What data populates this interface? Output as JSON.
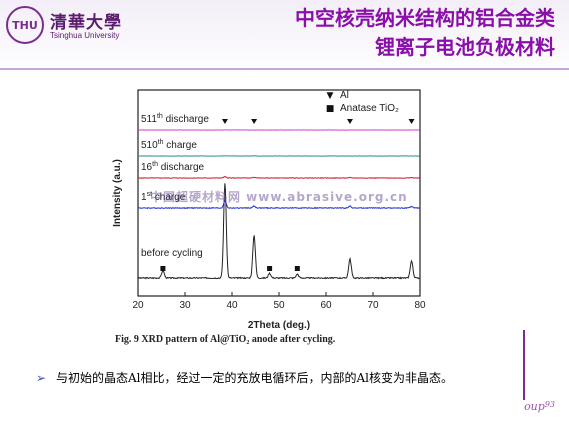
{
  "header": {
    "logo_cn": "清華大學",
    "logo_en": "Tsinghua University",
    "title_line1": "中空核壳纳米结构的铝合金类",
    "title_line2": "锂离子电池负极材料"
  },
  "caption": "Fig. 9 XRD pattern of Al@TiO₂ anode after cycling.",
  "bullet": "与初始的晶态Al相比，经过一定的充放电循环后，内部的Al核变为非晶态。",
  "page_number": "93",
  "watermark": "中国超硬材料网 www.abrasive.org.cn",
  "chart_data": {
    "type": "line",
    "xlabel": "2Theta (deg.)",
    "ylabel": "Intensity (a.u.)",
    "xlim": [
      20,
      80
    ],
    "x_ticks": [
      20,
      30,
      40,
      50,
      60,
      70,
      80
    ],
    "legend": [
      {
        "marker": "▼",
        "label": "Al"
      },
      {
        "marker": "■",
        "label": "Anatase TiO₂"
      }
    ],
    "series": [
      {
        "name": "before cycling",
        "color": "#222222",
        "offset": 0,
        "peaks": [
          [
            25.3,
            0.08
          ],
          [
            38.5,
            1.0
          ],
          [
            44.7,
            0.45
          ],
          [
            48.0,
            0.05
          ],
          [
            53.9,
            0.04
          ],
          [
            65.1,
            0.2
          ],
          [
            78.2,
            0.18
          ]
        ],
        "markers": [
          {
            "symbol": "square",
            "x": 25.3
          },
          {
            "symbol": "square",
            "x": 48.0
          },
          {
            "symbol": "square",
            "x": 53.9
          }
        ]
      },
      {
        "name": "1st charge",
        "color": "#1f2fd0",
        "offset": 1,
        "peaks": [
          [
            38.5,
            0.22
          ],
          [
            44.7,
            0.06
          ],
          [
            65.1,
            0.06
          ],
          [
            78.2,
            0.05
          ]
        ]
      },
      {
        "name": "16th discharge",
        "color": "#d01a2a",
        "offset": 2,
        "peaks": [
          [
            38.5,
            0.06
          ],
          [
            44.7,
            0.03
          ],
          [
            65.1,
            0.02
          ],
          [
            78.2,
            0.02
          ]
        ]
      },
      {
        "name": "510th charge",
        "color": "#2a8f8a",
        "offset": 3,
        "peaks": [
          [
            38.5,
            0.02
          ],
          [
            44.7,
            0.015
          ]
        ]
      },
      {
        "name": "511th discharge",
        "color": "#d040d0",
        "offset": 4,
        "peaks": [
          [
            38.5,
            0.015
          ]
        ]
      }
    ],
    "label_text": [
      {
        "base": "before cycling",
        "sup": ""
      },
      {
        "base": "1",
        "sup": "st",
        "rest": " charge"
      },
      {
        "base": "16",
        "sup": "th",
        "rest": " discharge"
      },
      {
        "base": "510",
        "sup": "th",
        "rest": " charge"
      },
      {
        "base": "511",
        "sup": "th",
        "rest": " discharge"
      }
    ],
    "al_triangles_x": [
      38.5,
      44.7,
      65.1,
      78.2
    ]
  }
}
